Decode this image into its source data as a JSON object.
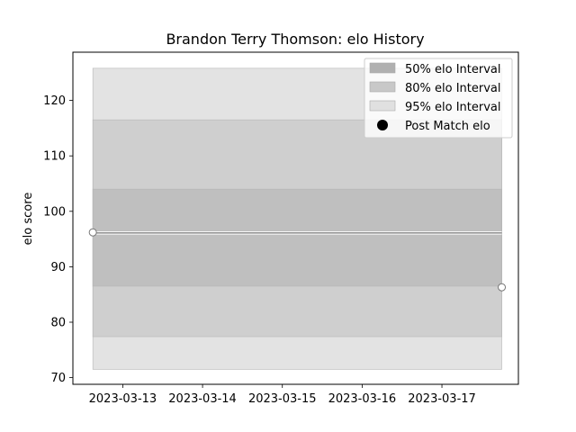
{
  "chart_data": {
    "type": "area",
    "title": "Brandon Terry Thomson: elo History",
    "xlabel": "",
    "ylabel": "elo score",
    "x_ticks": [
      "2023-03-13",
      "2023-03-14",
      "2023-03-15",
      "2023-03-16",
      "2023-03-17"
    ],
    "xlim": [
      "2023-03-12 09:00",
      "2023-03-17 23:00"
    ],
    "ylim": [
      68.8,
      128.7
    ],
    "y_ticks": [
      70,
      80,
      90,
      100,
      110,
      120
    ],
    "grid": false,
    "legend_position": "top-right",
    "x": [
      "2023-03-12 15:00",
      "2023-03-17 18:00"
    ],
    "bands": [
      {
        "name": "95% elo Interval",
        "lower": [
          71.5,
          71.5
        ],
        "upper": [
          125.8,
          125.8
        ],
        "color": "#e3e3e3"
      },
      {
        "name": "80% elo Interval",
        "lower": [
          77.4,
          77.4
        ],
        "upper": [
          116.5,
          116.5
        ],
        "color": "#cfcfcf"
      },
      {
        "name": "50% elo Interval",
        "lower": [
          86.5,
          86.5
        ],
        "upper": [
          104.0,
          104.0
        ],
        "color": "#bfbfbf"
      }
    ],
    "center_line": {
      "values": [
        96.1,
        96.1
      ],
      "color": "#000000"
    },
    "points": {
      "name": "Post Match elo",
      "x": [
        "2023-03-12 15:00",
        "2023-03-17 18:00"
      ],
      "y": [
        96.2,
        86.3
      ]
    },
    "legend": [
      {
        "label": "50% elo Interval",
        "color": "#b0b0b0",
        "kind": "patch"
      },
      {
        "label": "80% elo Interval",
        "color": "#c8c8c8",
        "kind": "patch"
      },
      {
        "label": "95% elo Interval",
        "color": "#e0e0e0",
        "kind": "patch"
      },
      {
        "label": "Post Match elo",
        "color": "#000000",
        "kind": "marker"
      }
    ]
  }
}
